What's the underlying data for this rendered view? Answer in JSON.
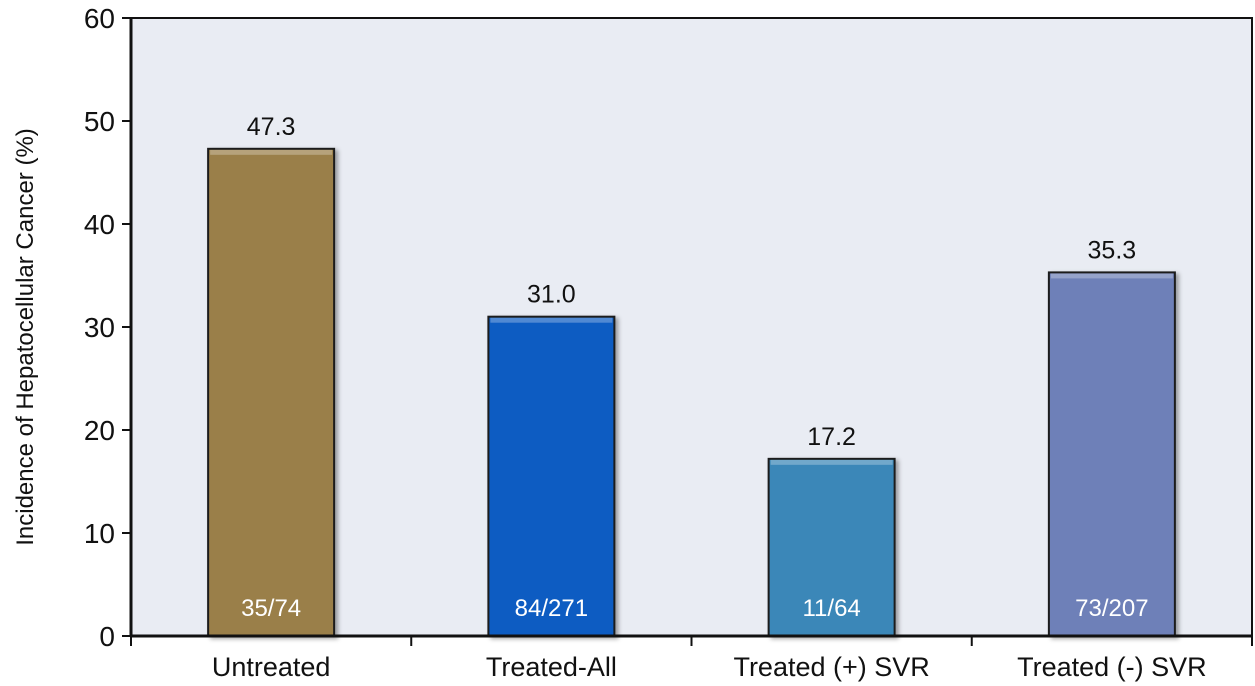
{
  "chart_data": {
    "type": "bar",
    "title": "",
    "xlabel": "",
    "ylabel": "Incidence of Hepatocellular Cancer (%)",
    "ylim": [
      0,
      60
    ],
    "yticks": [
      "0",
      "10",
      "20",
      "30",
      "40",
      "50",
      "60"
    ],
    "grid": false,
    "legend": "none",
    "categories": [
      "Untreated",
      "Treated-All",
      "Treated (+) SVR",
      "Treated (-) SVR"
    ],
    "values": [
      47.3,
      31.0,
      17.2,
      35.3
    ],
    "value_labels": [
      "47.3",
      "31.0",
      "17.2",
      "35.3"
    ],
    "bar_annotations": [
      "35/74",
      "84/271",
      "11/64",
      "73/207"
    ],
    "colors": [
      "#9a7f48",
      "#0a5cc2",
      "#3a87b8",
      "#6e80b8"
    ],
    "plot_background": "#e9ecf3"
  }
}
